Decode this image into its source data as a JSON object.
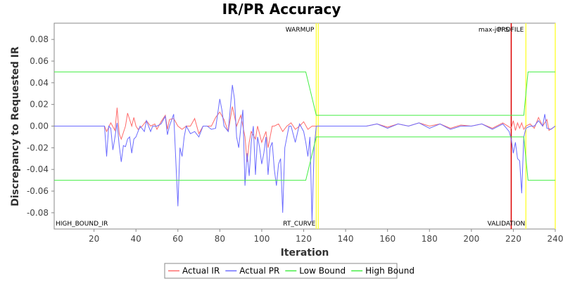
{
  "chart_data": {
    "type": "line",
    "title": "IR/PR Accuracy",
    "xlabel": "Iteration",
    "ylabel": "Discrepancy to Requested IR",
    "xlim": [
      1,
      240
    ],
    "ylim": [
      -0.095,
      0.095
    ],
    "grid": false,
    "x_ticks": [
      20,
      40,
      60,
      80,
      100,
      120,
      140,
      160,
      180,
      200,
      220,
      240
    ],
    "y_ticks": [
      -0.08,
      -0.06,
      -0.04,
      -0.02,
      0.0,
      0.02,
      0.04,
      0.06,
      0.08
    ],
    "y_tick_labels": [
      "-0.08",
      "-0.06",
      "-0.04",
      "-0.02",
      "0.00",
      "0.02",
      "0.04",
      "0.06",
      "0.08"
    ],
    "legend_position": "bottom",
    "colors": {
      "actual_ir": "#ff6b6b",
      "actual_pr": "#6b6bff",
      "low_bound": "#44ee44",
      "high_bound": "#44ee44",
      "phase_yellow": "#ffff44",
      "phase_red": "#dd0000"
    },
    "phase_markers": [
      {
        "x": 126,
        "label": "WARMUP",
        "label_pos": "top",
        "color": "#ffff44"
      },
      {
        "x": 127,
        "label": "",
        "label_pos": "top",
        "color": "#ffff44"
      },
      {
        "x": 219,
        "label": "max-jOPS",
        "label_pos": "top",
        "color": "#dd0000"
      },
      {
        "x": 226,
        "label": "PROFILE",
        "label_pos": "top",
        "color": "#ffff44"
      },
      {
        "x": 240,
        "label": "",
        "label_pos": "top",
        "color": "#ffff44"
      }
    ],
    "region_labels": [
      {
        "x": 1,
        "label": "HIGH_BOUND_IR",
        "anchor": "start"
      },
      {
        "x": 126,
        "label": "RT_CURVE",
        "anchor": "end"
      },
      {
        "x": 226,
        "label": "VALIDATION",
        "anchor": "end"
      }
    ],
    "series": [
      {
        "name": "Actual IR",
        "points": [
          [
            1,
            0
          ],
          [
            25,
            0
          ],
          [
            26,
            -0.005
          ],
          [
            28,
            0.003
          ],
          [
            30,
            -0.004
          ],
          [
            31,
            0.017
          ],
          [
            32,
            -0.007
          ],
          [
            33,
            -0.012
          ],
          [
            35,
            0.0
          ],
          [
            36,
            0.012
          ],
          [
            37,
            0.006
          ],
          [
            38,
            0.0
          ],
          [
            39,
            0.008
          ],
          [
            40,
            0.0
          ],
          [
            41,
            -0.003
          ],
          [
            43,
            0.0
          ],
          [
            45,
            0.005
          ],
          [
            47,
            0.0
          ],
          [
            49,
            0.002
          ],
          [
            50,
            -0.003
          ],
          [
            52,
            0.004
          ],
          [
            54,
            0.01
          ],
          [
            55,
            -0.003
          ],
          [
            56,
            0.006
          ],
          [
            58,
            0.007
          ],
          [
            60,
            0.0
          ],
          [
            62,
            -0.003
          ],
          [
            64,
            0.0
          ],
          [
            66,
            0.0
          ],
          [
            68,
            0.007
          ],
          [
            70,
            -0.007
          ],
          [
            72,
            0.0
          ],
          [
            74,
            0.0
          ],
          [
            76,
            0.0
          ],
          [
            78,
            0.008
          ],
          [
            80,
            0.013
          ],
          [
            82,
            0.006
          ],
          [
            84,
            -0.005
          ],
          [
            86,
            0.018
          ],
          [
            88,
            0.0
          ],
          [
            90,
            0.01
          ],
          [
            92,
            -0.01
          ],
          [
            93,
            -0.033
          ],
          [
            94,
            -0.015
          ],
          [
            95,
            -0.005
          ],
          [
            97,
            -0.012
          ],
          [
            98,
            0.0
          ],
          [
            100,
            -0.015
          ],
          [
            102,
            -0.005
          ],
          [
            103,
            -0.02
          ],
          [
            105,
            0.0
          ],
          [
            106,
            0.0
          ],
          [
            108,
            0.002
          ],
          [
            110,
            -0.005
          ],
          [
            112,
            0.0
          ],
          [
            114,
            0.003
          ],
          [
            116,
            -0.003
          ],
          [
            118,
            0.0
          ],
          [
            120,
            0.004
          ],
          [
            122,
            -0.003
          ],
          [
            124,
            0.0
          ],
          [
            126,
            0.0
          ],
          [
            130,
            0.0
          ],
          [
            150,
            0.0
          ],
          [
            155,
            0.002
          ],
          [
            160,
            -0.001
          ],
          [
            165,
            0.002
          ],
          [
            170,
            0.0
          ],
          [
            175,
            0.003
          ],
          [
            180,
            0.0
          ],
          [
            185,
            0.002
          ],
          [
            190,
            -0.002
          ],
          [
            195,
            0.001
          ],
          [
            200,
            0.0
          ],
          [
            205,
            0.002
          ],
          [
            210,
            -0.002
          ],
          [
            215,
            0.003
          ],
          [
            219,
            -0.002
          ],
          [
            220,
            0.005
          ],
          [
            221,
            -0.004
          ],
          [
            222,
            0.003
          ],
          [
            223,
            -0.002
          ],
          [
            224,
            0.003
          ],
          [
            225,
            -0.003
          ],
          [
            226,
            0.0
          ],
          [
            228,
            0.002
          ],
          [
            230,
            -0.002
          ],
          [
            232,
            0.008
          ],
          [
            234,
            0.0
          ],
          [
            236,
            0.006
          ],
          [
            237,
            -0.004
          ],
          [
            240,
            0.0
          ]
        ]
      },
      {
        "name": "Actual PR",
        "points": [
          [
            1,
            0
          ],
          [
            25,
            0
          ],
          [
            26,
            -0.028
          ],
          [
            27,
            0.0
          ],
          [
            28,
            -0.002
          ],
          [
            29,
            -0.022
          ],
          [
            30,
            -0.01
          ],
          [
            31,
            0.003
          ],
          [
            32,
            -0.018
          ],
          [
            33,
            -0.033
          ],
          [
            34,
            -0.018
          ],
          [
            35,
            -0.019
          ],
          [
            36,
            -0.012
          ],
          [
            37,
            -0.01
          ],
          [
            38,
            -0.025
          ],
          [
            39,
            -0.012
          ],
          [
            40,
            -0.01
          ],
          [
            42,
            0.0
          ],
          [
            44,
            -0.005
          ],
          [
            45,
            0.005
          ],
          [
            47,
            -0.005
          ],
          [
            48,
            0.0
          ],
          [
            50,
            0.0
          ],
          [
            52,
            0.002
          ],
          [
            54,
            0.009
          ],
          [
            55,
            -0.008
          ],
          [
            56,
            0.0
          ],
          [
            58,
            0.011
          ],
          [
            60,
            -0.074
          ],
          [
            61,
            -0.02
          ],
          [
            62,
            -0.028
          ],
          [
            63,
            -0.01
          ],
          [
            64,
            0.0
          ],
          [
            66,
            -0.007
          ],
          [
            68,
            -0.005
          ],
          [
            70,
            -0.01
          ],
          [
            72,
            0.0
          ],
          [
            74,
            0.0
          ],
          [
            76,
            -0.003
          ],
          [
            78,
            -0.002
          ],
          [
            80,
            0.025
          ],
          [
            81,
            0.015
          ],
          [
            82,
            0.0
          ],
          [
            84,
            -0.005
          ],
          [
            86,
            0.038
          ],
          [
            87,
            0.025
          ],
          [
            88,
            -0.01
          ],
          [
            89,
            -0.02
          ],
          [
            90,
            -0.002
          ],
          [
            91,
            0.015
          ],
          [
            92,
            -0.055
          ],
          [
            93,
            -0.025
          ],
          [
            94,
            -0.046
          ],
          [
            95,
            -0.015
          ],
          [
            96,
            0.0
          ],
          [
            97,
            -0.045
          ],
          [
            98,
            -0.01
          ],
          [
            99,
            -0.02
          ],
          [
            100,
            -0.035
          ],
          [
            101,
            -0.025
          ],
          [
            102,
            -0.01
          ],
          [
            103,
            -0.045
          ],
          [
            104,
            -0.02
          ],
          [
            105,
            -0.015
          ],
          [
            106,
            -0.04
          ],
          [
            107,
            -0.055
          ],
          [
            108,
            -0.035
          ],
          [
            109,
            -0.03
          ],
          [
            110,
            -0.08
          ],
          [
            111,
            -0.02
          ],
          [
            112,
            -0.01
          ],
          [
            113,
            0.0
          ],
          [
            114,
            0.0
          ],
          [
            116,
            -0.015
          ],
          [
            118,
            0.002
          ],
          [
            120,
            -0.005
          ],
          [
            121,
            -0.015
          ],
          [
            122,
            -0.028
          ],
          [
            123,
            -0.01
          ],
          [
            124,
            -0.088
          ],
          [
            125,
            -0.02
          ],
          [
            126,
            0.0
          ],
          [
            130,
            0.0
          ],
          [
            150,
            0.0
          ],
          [
            155,
            0.002
          ],
          [
            160,
            -0.002
          ],
          [
            165,
            0.002
          ],
          [
            170,
            0.0
          ],
          [
            175,
            0.003
          ],
          [
            180,
            -0.002
          ],
          [
            185,
            0.002
          ],
          [
            190,
            -0.003
          ],
          [
            195,
            0.0
          ],
          [
            200,
            0.0
          ],
          [
            205,
            0.002
          ],
          [
            210,
            -0.003
          ],
          [
            215,
            0.002
          ],
          [
            218,
            -0.005
          ],
          [
            219,
            -0.012
          ],
          [
            220,
            -0.025
          ],
          [
            221,
            -0.015
          ],
          [
            222,
            -0.03
          ],
          [
            223,
            -0.032
          ],
          [
            224,
            -0.062
          ],
          [
            225,
            -0.01
          ],
          [
            226,
            -0.002
          ],
          [
            228,
            0.0
          ],
          [
            230,
            0.0
          ],
          [
            232,
            0.005
          ],
          [
            234,
            0.0
          ],
          [
            235,
            0.011
          ],
          [
            236,
            -0.002
          ],
          [
            238,
            -0.003
          ],
          [
            240,
            0.0
          ]
        ]
      },
      {
        "name": "Low Bound",
        "points": [
          [
            1,
            -0.05
          ],
          [
            121,
            -0.05
          ],
          [
            126,
            -0.01
          ],
          [
            225,
            -0.01
          ],
          [
            227,
            -0.05
          ],
          [
            240,
            -0.05
          ]
        ]
      },
      {
        "name": "High Bound",
        "points": [
          [
            1,
            0.05
          ],
          [
            121,
            0.05
          ],
          [
            126,
            0.01
          ],
          [
            225,
            0.01
          ],
          [
            227,
            0.05
          ],
          [
            240,
            0.05
          ]
        ]
      }
    ]
  }
}
